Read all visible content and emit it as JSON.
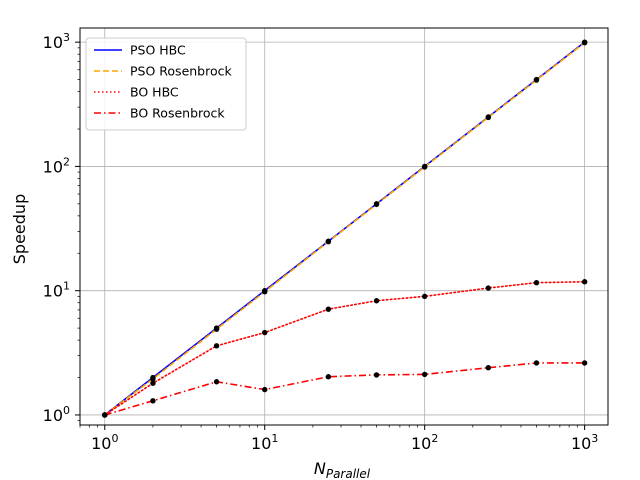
{
  "chart_data": {
    "type": "line",
    "xlabel_main": "N",
    "xlabel_sub": "Parallel",
    "ylabel": "Speedup",
    "xscale": "log",
    "yscale": "log",
    "xlim": [
      0.7,
      1400
    ],
    "ylim": [
      0.83,
      1300
    ],
    "grid": true,
    "legend_position": "top-left",
    "x_ticks": [
      {
        "base": "10",
        "exp": "0",
        "value": 1
      },
      {
        "base": "10",
        "exp": "1",
        "value": 10
      },
      {
        "base": "10",
        "exp": "2",
        "value": 100
      },
      {
        "base": "10",
        "exp": "3",
        "value": 1000
      }
    ],
    "y_ticks": [
      {
        "base": "10",
        "exp": "0",
        "value": 1
      },
      {
        "base": "10",
        "exp": "1",
        "value": 10
      },
      {
        "base": "10",
        "exp": "2",
        "value": 100
      },
      {
        "base": "10",
        "exp": "3",
        "value": 1000
      }
    ],
    "x": [
      1,
      2,
      5,
      10,
      25,
      50,
      100,
      250,
      500,
      1000
    ],
    "series": [
      {
        "name": "PSO HBC",
        "color": "#0000ff",
        "style": "solid",
        "values": [
          1,
          2,
          5,
          10,
          25,
          50,
          100,
          250,
          500,
          1000
        ]
      },
      {
        "name": "PSO Rosenbrock",
        "color": "#ffa500",
        "style": "dashed",
        "values": [
          1,
          1.95,
          4.9,
          9.8,
          24.8,
          49.5,
          99,
          248,
          495,
          990
        ]
      },
      {
        "name": "BO HBC",
        "color": "#ff0000",
        "style": "dotted",
        "values": [
          1,
          1.8,
          3.6,
          4.6,
          7.1,
          8.3,
          9.0,
          10.5,
          11.6,
          11.8
        ]
      },
      {
        "name": "BO Rosenbrock",
        "color": "#ff0000",
        "style": "dashdot",
        "values": [
          1,
          1.3,
          1.85,
          1.6,
          2.03,
          2.1,
          2.12,
          2.4,
          2.62,
          2.62
        ]
      }
    ]
  }
}
